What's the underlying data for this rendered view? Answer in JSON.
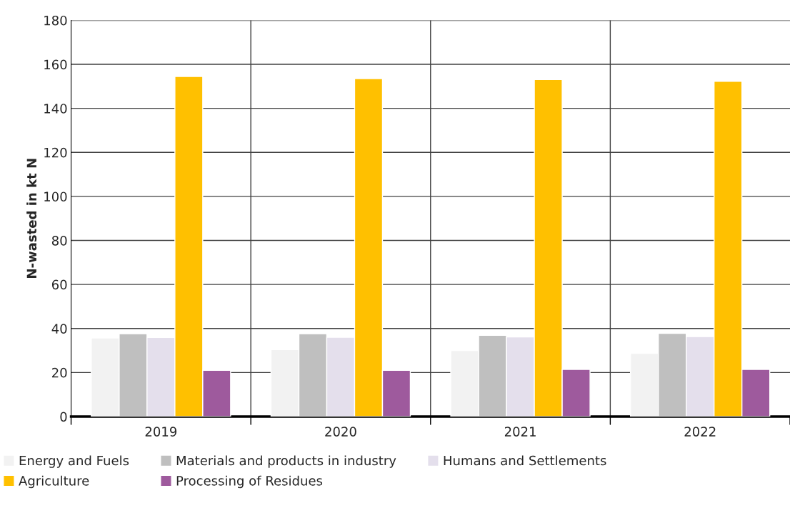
{
  "chart_data": {
    "type": "bar",
    "ylabel": "N-wasted in kt N",
    "categories": [
      "2019",
      "2020",
      "2021",
      "2022"
    ],
    "series": [
      {
        "name": "Energy and Fuels",
        "color": "#f2f2f2",
        "values": [
          35.7,
          30.4,
          30.0,
          28.7
        ]
      },
      {
        "name": "Materials and products in industry",
        "color": "#bfbfbf",
        "values": [
          37.6,
          37.6,
          36.9,
          37.8
        ]
      },
      {
        "name": "Humans and Settlements",
        "color": "#e4dfec",
        "values": [
          35.9,
          36.0,
          36.2,
          36.3
        ]
      },
      {
        "name": "Agriculture",
        "color": "#ffc000",
        "values": [
          154.5,
          153.5,
          153.1,
          152.3
        ]
      },
      {
        "name": "Processing of Residues",
        "color": "#9e5a9d",
        "values": [
          21.0,
          21.0,
          21.4,
          21.4
        ]
      }
    ],
    "ylim": [
      0,
      180
    ],
    "yticks": [
      0,
      20,
      40,
      60,
      80,
      100,
      120,
      140,
      160,
      180
    ],
    "grid": true,
    "legend": "bottom"
  }
}
